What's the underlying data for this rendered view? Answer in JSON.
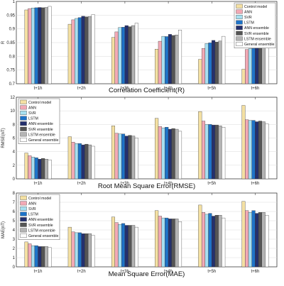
{
  "chart_data": [
    {
      "type": "bar",
      "title": "Correlation Coefficient(R)",
      "ylabel": "R",
      "ylim": [
        0.7,
        1.0
      ],
      "yticks": [
        0.7,
        0.75,
        0.8,
        0.85,
        0.9,
        0.95,
        1
      ],
      "ytick_labels": [
        "0.7",
        "0.75",
        "0.8",
        "0.85",
        "0.9",
        "0.95",
        "1"
      ],
      "categories": [
        "t+1h",
        "t+2h",
        "t+3h",
        "t+4h",
        "t+5h",
        "t+6h"
      ],
      "grid": true,
      "legend": "top-right",
      "series": [
        {
          "name": "Control model",
          "color": "#f4e0a2",
          "values": [
            0.969,
            0.917,
            0.869,
            0.826,
            0.789,
            0.753
          ]
        },
        {
          "name": "ANN",
          "color": "#f2a9b5",
          "values": [
            0.974,
            0.933,
            0.889,
            0.855,
            0.829,
            0.825
          ]
        },
        {
          "name": "SVR",
          "color": "#a6dff0",
          "values": [
            0.976,
            0.938,
            0.905,
            0.873,
            0.847,
            0.828
          ]
        },
        {
          "name": "LSTM",
          "color": "#1e73c8",
          "values": [
            0.977,
            0.941,
            0.906,
            0.872,
            0.849,
            0.829
          ]
        },
        {
          "name": "ANN ensemble",
          "color": "#24306e",
          "values": [
            0.978,
            0.946,
            0.912,
            0.88,
            0.858,
            0.842
          ]
        },
        {
          "name": "SVR ensemble",
          "color": "#555555",
          "values": [
            0.977,
            0.944,
            0.908,
            0.876,
            0.852,
            0.832
          ]
        },
        {
          "name": "LSTM ensemble",
          "color": "#b4b4b4",
          "values": [
            0.978,
            0.945,
            0.912,
            0.878,
            0.856,
            0.839
          ]
        },
        {
          "name": "General ensemble",
          "color": "#ffffff",
          "values": [
            0.982,
            0.952,
            0.921,
            0.896,
            0.873,
            0.856
          ]
        }
      ]
    },
    {
      "type": "bar",
      "title": "Root Mean Square Error(RMSE)",
      "ylabel": "RMSE(nT)",
      "ylim": [
        0,
        12
      ],
      "yticks": [
        0,
        2,
        4,
        6,
        8,
        10,
        12
      ],
      "ytick_labels": [
        "0",
        "2",
        "4",
        "6",
        "8",
        "10",
        "12"
      ],
      "categories": [
        "t+1h",
        "t+2h",
        "t+3h",
        "t+4h",
        "t+5h",
        "t+6h"
      ],
      "grid": true,
      "legend": "top-left",
      "series": [
        {
          "name": "Control model",
          "color": "#f4e0a2",
          "values": [
            3.8,
            6.2,
            7.8,
            8.9,
            9.9,
            10.8
          ]
        },
        {
          "name": "ANN",
          "color": "#f2a9b5",
          "values": [
            3.4,
            5.4,
            6.7,
            7.7,
            8.5,
            8.7
          ]
        },
        {
          "name": "SVR",
          "color": "#a6dff0",
          "values": [
            3.2,
            5.2,
            6.6,
            7.5,
            8.0,
            8.6
          ]
        },
        {
          "name": "LSTM",
          "color": "#1e73c8",
          "values": [
            3.1,
            5.2,
            6.6,
            7.6,
            8.0,
            8.6
          ]
        },
        {
          "name": "ANN ensemble",
          "color": "#24306e",
          "values": [
            2.9,
            5.0,
            6.3,
            7.3,
            7.9,
            8.4
          ]
        },
        {
          "name": "SVR ensemble",
          "color": "#555555",
          "values": [
            3.0,
            5.1,
            6.4,
            7.4,
            7.9,
            8.5
          ]
        },
        {
          "name": "LSTM ensemble",
          "color": "#b4b4b4",
          "values": [
            2.9,
            5.0,
            6.3,
            7.3,
            7.8,
            8.4
          ]
        },
        {
          "name": "General ensemble",
          "color": "#ffffff",
          "values": [
            2.8,
            4.8,
            6.0,
            7.0,
            7.6,
            8.1
          ]
        }
      ]
    },
    {
      "type": "bar",
      "title": "Mean Square Error(MAE)",
      "ylabel": "MAE(nT)",
      "ylim": [
        0,
        8
      ],
      "yticks": [
        0,
        1,
        2,
        3,
        4,
        5,
        6,
        7,
        8
      ],
      "ytick_labels": [
        "0",
        "1",
        "2",
        "3",
        "4",
        "5",
        "6",
        "7",
        "8"
      ],
      "categories": [
        "t+1h",
        "t+2h",
        "t+3h",
        "t+4h",
        "t+5h",
        "t+6h"
      ],
      "grid": true,
      "legend": "top-left",
      "series": [
        {
          "name": "Control model",
          "color": "#f4e0a2",
          "values": [
            2.7,
            4.3,
            5.4,
            6.1,
            6.7,
            7.1
          ]
        },
        {
          "name": "ANN",
          "color": "#f2a9b5",
          "values": [
            2.5,
            3.8,
            4.8,
            5.5,
            5.9,
            6.1
          ]
        },
        {
          "name": "SVR",
          "color": "#a6dff0",
          "values": [
            2.3,
            3.7,
            4.6,
            5.3,
            5.7,
            5.9
          ]
        },
        {
          "name": "LSTM",
          "color": "#1e73c8",
          "values": [
            2.3,
            3.7,
            4.7,
            5.3,
            5.8,
            6.1
          ]
        },
        {
          "name": "ANN ensemble",
          "color": "#24306e",
          "values": [
            2.2,
            3.6,
            4.5,
            5.2,
            5.5,
            5.8
          ]
        },
        {
          "name": "SVR ensemble",
          "color": "#555555",
          "values": [
            2.2,
            3.6,
            4.5,
            5.2,
            5.6,
            5.9
          ]
        },
        {
          "name": "LSTM ensemble",
          "color": "#b4b4b4",
          "values": [
            2.2,
            3.6,
            4.5,
            5.2,
            5.6,
            5.9
          ]
        },
        {
          "name": "General ensemble",
          "color": "#ffffff",
          "values": [
            2.1,
            3.4,
            4.3,
            4.9,
            5.3,
            5.6
          ]
        }
      ]
    }
  ]
}
